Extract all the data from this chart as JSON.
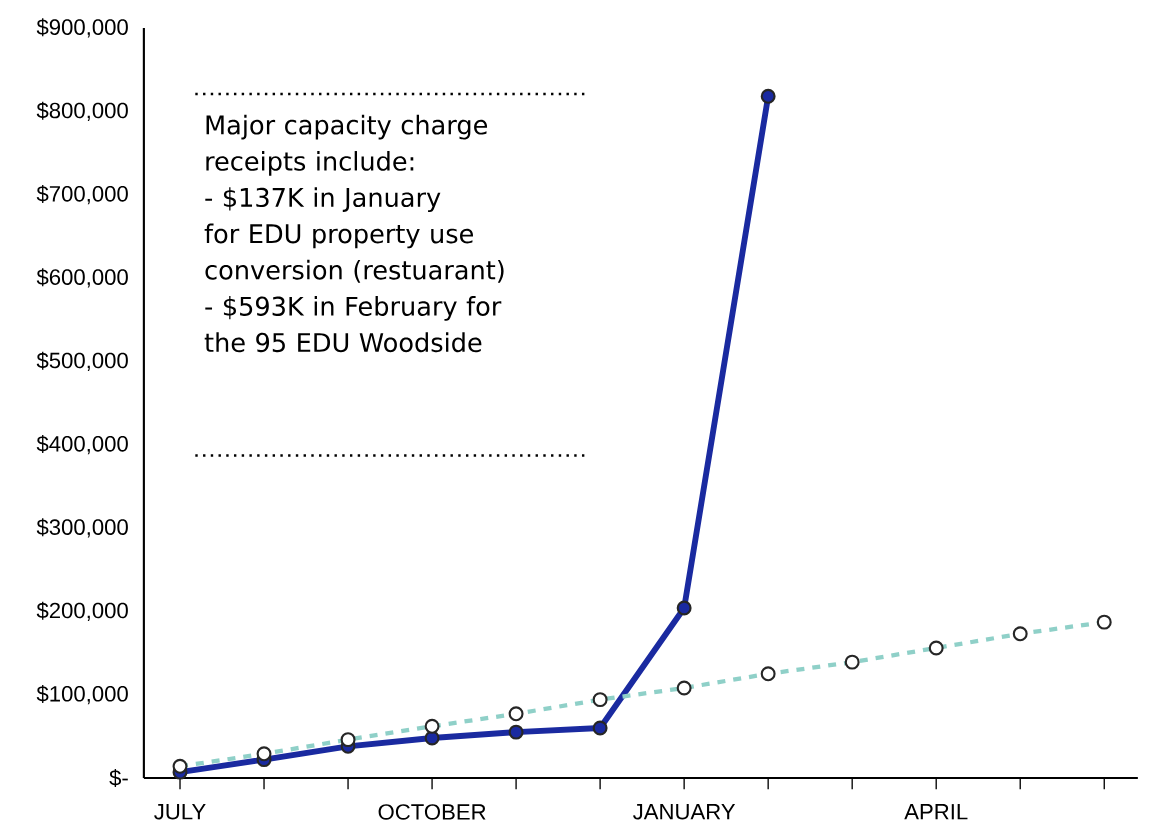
{
  "chart_data": {
    "type": "line",
    "categories": [
      "JULY",
      null,
      null,
      "OCTOBER",
      null,
      null,
      "JANUARY",
      null,
      null,
      "APRIL",
      null,
      null
    ],
    "series": [
      {
        "color": "#1a2aa0",
        "line_style": "solid",
        "values": [
          7000,
          22000,
          38000,
          48000,
          55000,
          60000,
          204000,
          818000,
          null,
          null,
          null,
          null
        ]
      },
      {
        "color": "#8fd0c8",
        "line_style": "dashed",
        "values": [
          14000,
          29000,
          46000,
          62000,
          77000,
          94000,
          108000,
          125000,
          139000,
          156000,
          173000,
          187000
        ]
      }
    ],
    "ylim": [
      0,
      900000
    ],
    "yticks": [
      {
        "value": 0,
        "label": "$-"
      },
      {
        "value": 100000,
        "label": "$100,000"
      },
      {
        "value": 200000,
        "label": "$200,000"
      },
      {
        "value": 300000,
        "label": "$300,000"
      },
      {
        "value": 400000,
        "label": "$400,000"
      },
      {
        "value": 500000,
        "label": "$500,000"
      },
      {
        "value": 600000,
        "label": "$600,000"
      },
      {
        "value": 700000,
        "label": "$700,000"
      },
      {
        "value": 800000,
        "label": "$800,000"
      },
      {
        "value": 900000,
        "label": "$900,000"
      }
    ],
    "marker": "circle",
    "annotations": [
      "Major capacity charge receipts include:",
      "- $137K in January for EDU property use conversion (restuarant)",
      "- $593K in February for the 95 EDU Woodside"
    ]
  }
}
